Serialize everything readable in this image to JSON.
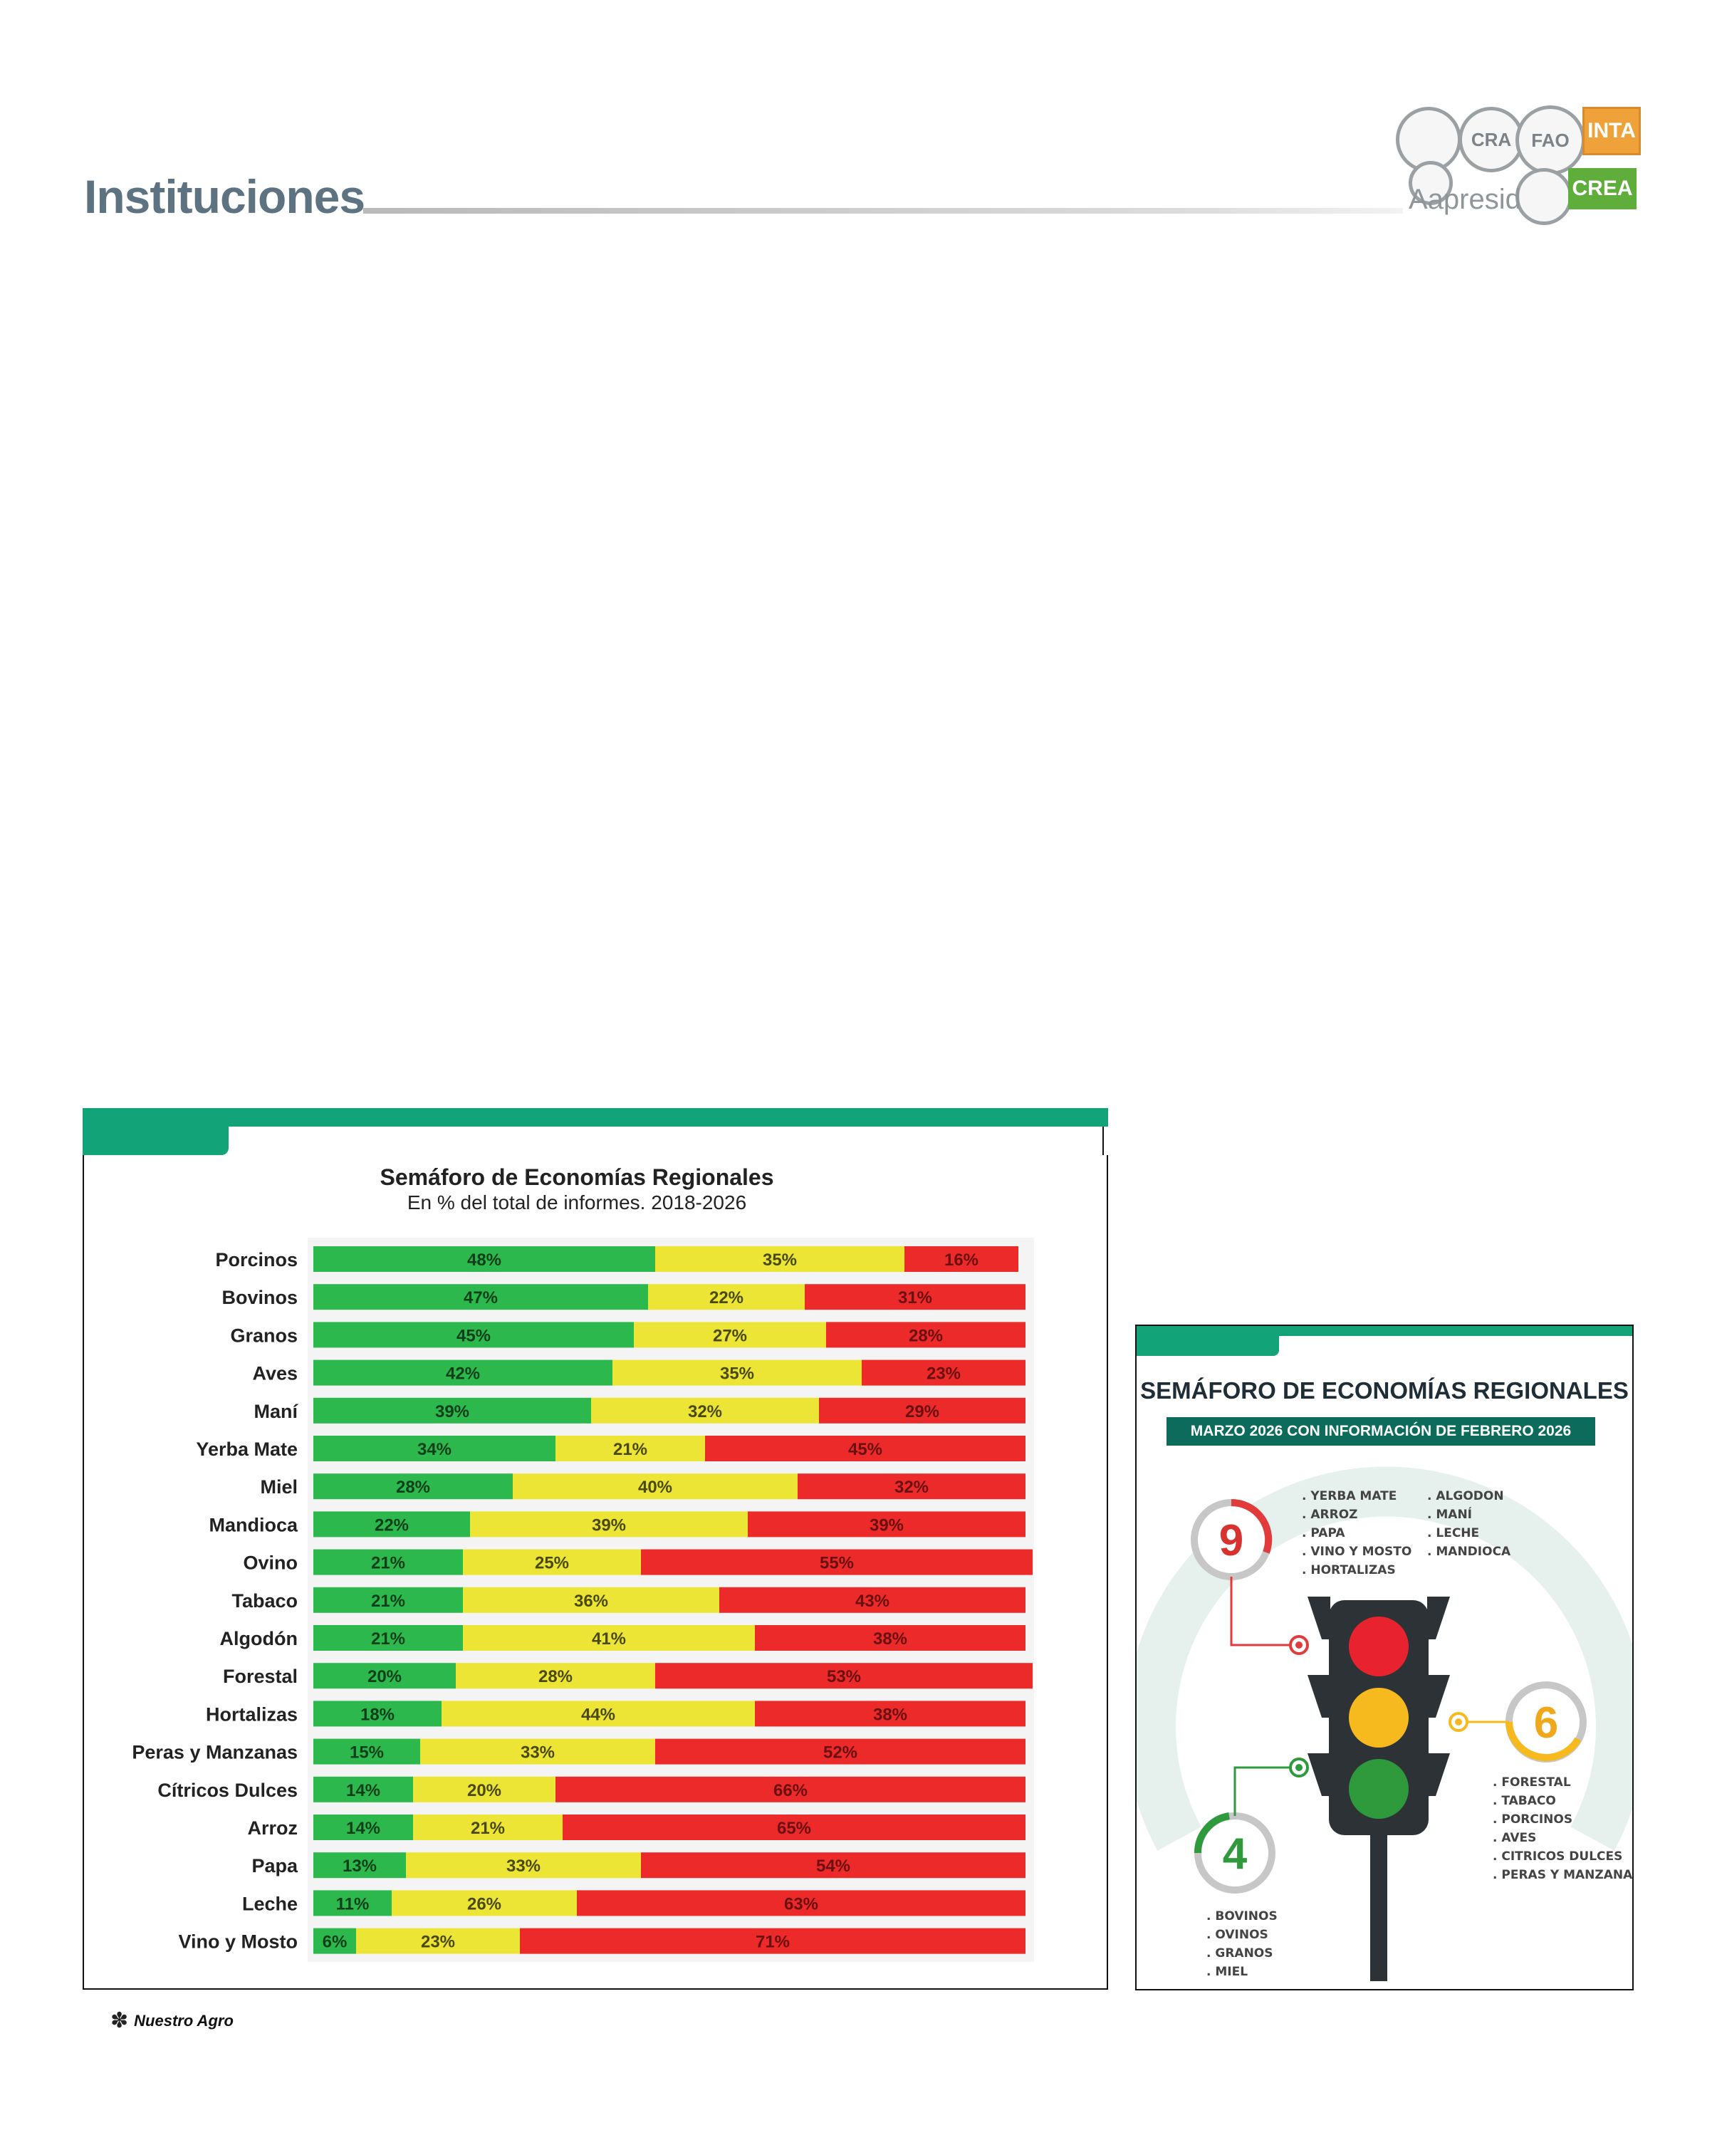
{
  "header": {
    "section_title": "Instituciones"
  },
  "logos": {
    "inta": "INTA",
    "crea": "CREA",
    "aapresid": "Aapresid",
    "fao": "FAO",
    "cra": "CRA"
  },
  "footer": {
    "brand": "Nuestro Agro"
  },
  "colors": {
    "green": "#2db84d",
    "yellow": "#ede535",
    "red": "#ec2a2a",
    "accent": "#12a378"
  },
  "chart_data": {
    "type": "bar",
    "orientation": "horizontal",
    "stacked": true,
    "title": "Semáforo de Economías Regionales",
    "subtitle": "En % del total de informes. 2018-2026",
    "categories": [
      "Porcinos",
      "Bovinos",
      "Granos",
      "Aves",
      "Maní",
      "Yerba Mate",
      "Miel",
      "Mandioca",
      "Ovino",
      "Tabaco",
      "Algodón",
      "Forestal",
      "Hortalizas",
      "Peras y Manzanas",
      "Cítricos Dulces",
      "Arroz",
      "Papa",
      "Leche",
      "Vino y Mosto"
    ],
    "series": [
      {
        "color": "#2db84d",
        "values": [
          48,
          47,
          45,
          42,
          39,
          34,
          28,
          22,
          21,
          21,
          21,
          20,
          18,
          15,
          14,
          14,
          13,
          11,
          6
        ]
      },
      {
        "color": "#ede535",
        "values": [
          35,
          22,
          27,
          35,
          32,
          21,
          40,
          39,
          25,
          36,
          41,
          28,
          44,
          33,
          20,
          21,
          33,
          26,
          23
        ]
      },
      {
        "color": "#ec2a2a",
        "values": [
          16,
          31,
          28,
          23,
          29,
          45,
          32,
          39,
          55,
          43,
          38,
          53,
          38,
          52,
          66,
          65,
          54,
          63,
          71
        ]
      }
    ],
    "xlim": [
      0,
      100
    ],
    "grid": false
  },
  "infographic": {
    "title": "SEMÁFORO DE ECONOMÍAS REGIONALES",
    "subtitle": "MARZO 2026 CON INFORMACIÓN DE FEBRERO 2026",
    "red": {
      "count": "9",
      "items_col1": [
        ". YERBA MATE",
        ". ARROZ",
        ". PAPA",
        ". VINO Y MOSTO",
        ". HORTALIZAS"
      ],
      "items_col2": [
        ". ALGODON",
        ". MANÍ",
        ". LECHE",
        ". MANDIOCA"
      ]
    },
    "yellow": {
      "count": "6",
      "items": [
        ". FORESTAL",
        ". TABACO",
        ". PORCINOS",
        ". AVES",
        ". CITRICOS DULCES",
        ". PERAS Y MANZANAS"
      ]
    },
    "green": {
      "count": "4",
      "items": [
        ". BOVINOS",
        ". OVINOS",
        ". GRANOS",
        ". MIEL"
      ]
    }
  }
}
